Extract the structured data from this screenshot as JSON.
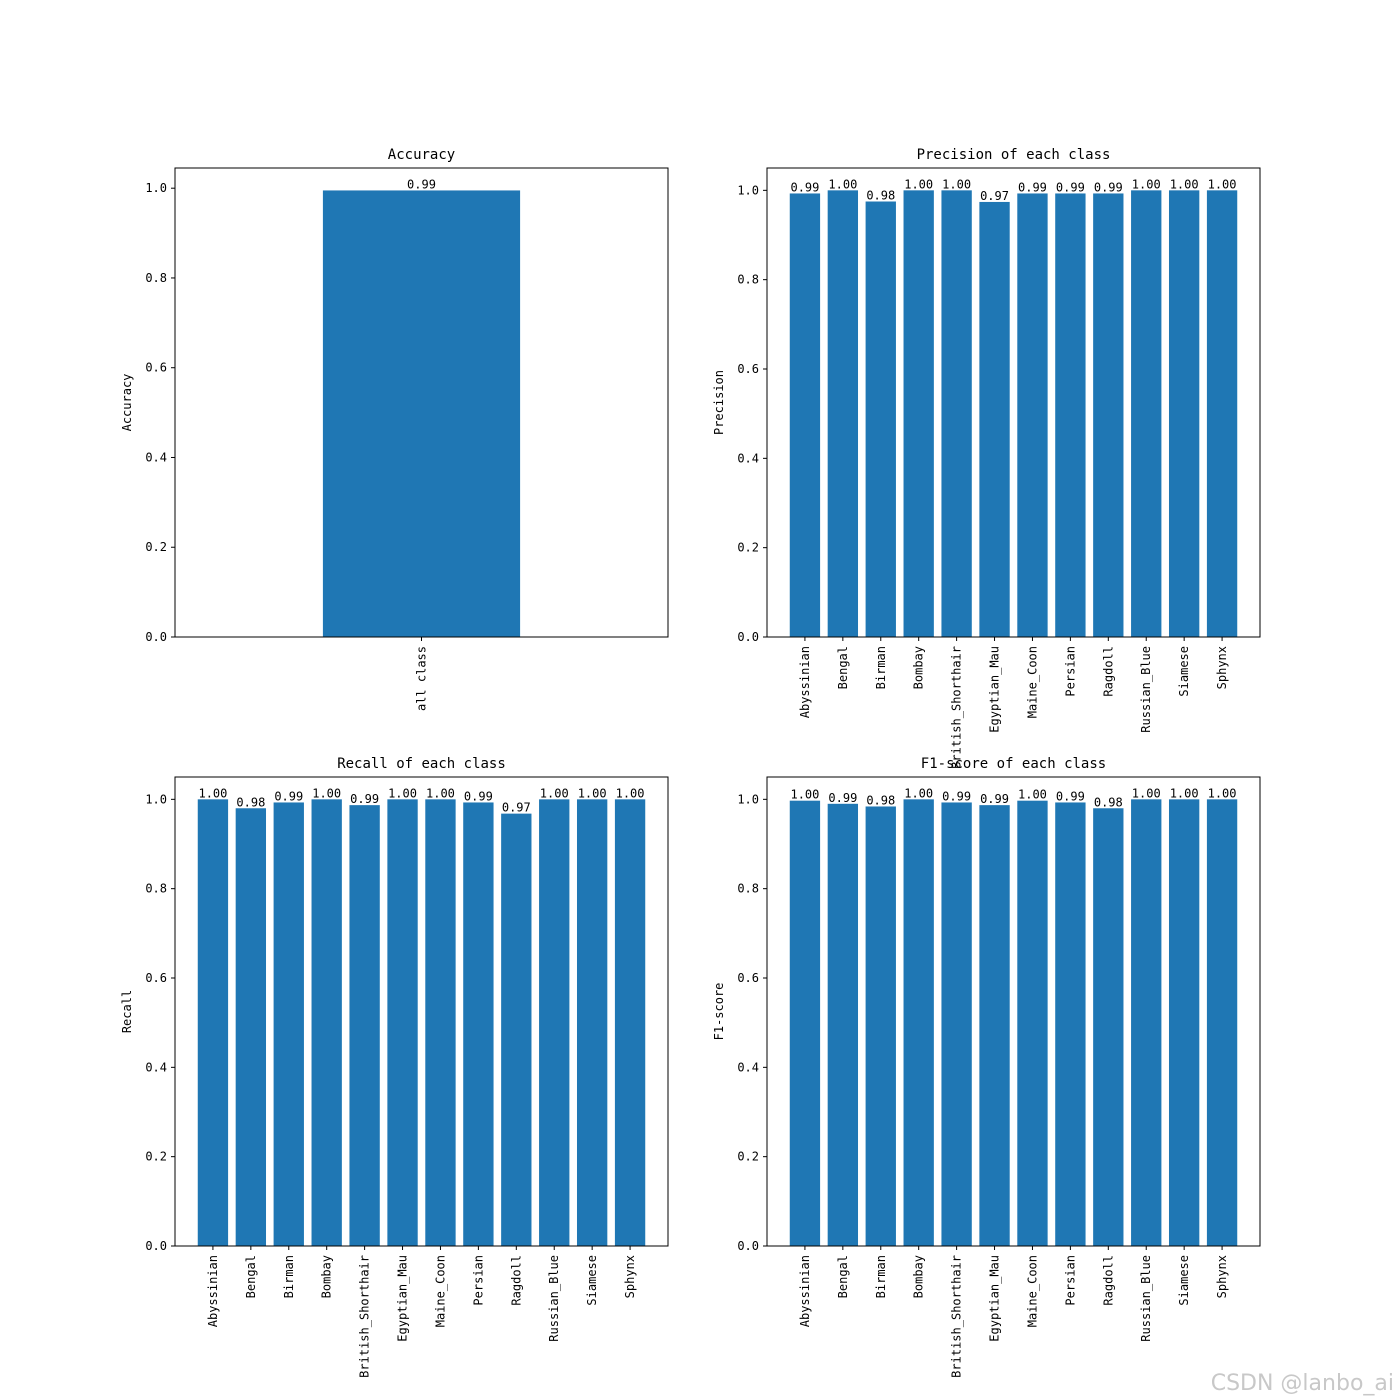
{
  "figure": {
    "watermark": "CSDN @lanbo_ai",
    "bar_color": "#1f77b4"
  },
  "chart_data": [
    {
      "type": "bar",
      "title": "Accuracy",
      "xlabel": "",
      "ylabel": "Accuracy",
      "ylim": [
        0,
        1.045
      ],
      "yticks": [
        "0.0",
        "0.2",
        "0.4",
        "0.6",
        "0.8",
        "1.0"
      ],
      "categories": [
        "all class"
      ],
      "values": [
        0.995
      ],
      "labels": [
        "0.99"
      ]
    },
    {
      "type": "bar",
      "title": "Precision of each class",
      "xlabel": "",
      "ylabel": "Precision",
      "ylim": [
        0,
        1.05
      ],
      "yticks": [
        "0.0",
        "0.2",
        "0.4",
        "0.6",
        "0.8",
        "1.0"
      ],
      "categories": [
        "Abyssinian",
        "Bengal",
        "Birman",
        "Bombay",
        "British_Shorthair",
        "Egyptian_Mau",
        "Maine_Coon",
        "Persian",
        "Ragdoll",
        "Russian_Blue",
        "Siamese",
        "Sphynx"
      ],
      "values": [
        0.993,
        1.0,
        0.975,
        1.0,
        1.0,
        0.974,
        0.993,
        0.993,
        0.993,
        1.0,
        1.0,
        1.0
      ],
      "labels": [
        "0.99",
        "1.00",
        "0.98",
        "1.00",
        "1.00",
        "0.97",
        "0.99",
        "0.99",
        "0.99",
        "1.00",
        "1.00",
        "1.00"
      ]
    },
    {
      "type": "bar",
      "title": "Recall of each class",
      "xlabel": "",
      "ylabel": "Recall",
      "ylim": [
        0,
        1.05
      ],
      "yticks": [
        "0.0",
        "0.2",
        "0.4",
        "0.6",
        "0.8",
        "1.0"
      ],
      "categories": [
        "Abyssinian",
        "Bengal",
        "Birman",
        "Bombay",
        "British_Shorthair",
        "Egyptian_Mau",
        "Maine_Coon",
        "Persian",
        "Ragdoll",
        "Russian_Blue",
        "Siamese",
        "Sphynx"
      ],
      "values": [
        1.0,
        0.98,
        0.993,
        1.0,
        0.987,
        1.0,
        1.0,
        0.993,
        0.968,
        1.0,
        1.0,
        1.0
      ],
      "labels": [
        "1.00",
        "0.98",
        "0.99",
        "1.00",
        "0.99",
        "1.00",
        "1.00",
        "0.99",
        "0.97",
        "1.00",
        "1.00",
        "1.00"
      ]
    },
    {
      "type": "bar",
      "title": "F1-score of each class",
      "xlabel": "",
      "ylabel": "F1-score",
      "ylim": [
        0,
        1.05
      ],
      "yticks": [
        "0.0",
        "0.2",
        "0.4",
        "0.6",
        "0.8",
        "1.0"
      ],
      "categories": [
        "Abyssinian",
        "Bengal",
        "Birman",
        "Bombay",
        "British_Shorthair",
        "Egyptian_Mau",
        "Maine_Coon",
        "Persian",
        "Ragdoll",
        "Russian_Blue",
        "Siamese",
        "Sphynx"
      ],
      "values": [
        0.997,
        0.99,
        0.984,
        1.0,
        0.993,
        0.987,
        0.997,
        0.993,
        0.98,
        1.0,
        1.0,
        1.0
      ],
      "labels": [
        "1.00",
        "0.99",
        "0.98",
        "1.00",
        "0.99",
        "0.99",
        "1.00",
        "0.99",
        "0.98",
        "1.00",
        "1.00",
        "1.00"
      ]
    }
  ]
}
